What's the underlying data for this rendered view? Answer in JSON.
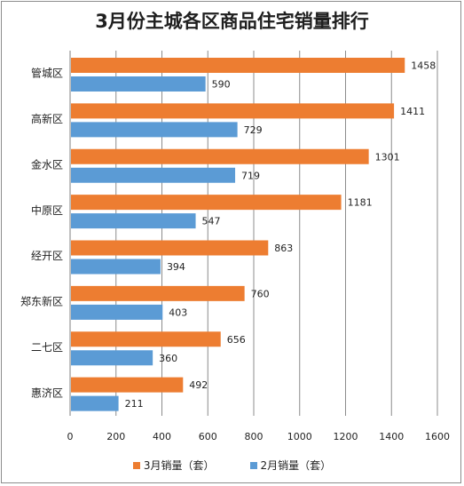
{
  "chart_data": {
    "type": "bar",
    "orientation": "horizontal",
    "title": "3月份主城各区商品住宅销量排行",
    "categories": [
      "管城区",
      "高新区",
      "金水区",
      "中原区",
      "经开区",
      "郑东新区",
      "二七区",
      "惠济区"
    ],
    "series": [
      {
        "name": "3月销量（套）",
        "color": "#ed7d31",
        "values": [
          1458,
          1411,
          1301,
          1181,
          863,
          760,
          656,
          492
        ]
      },
      {
        "name": "2月销量（套）",
        "color": "#5b9bd5",
        "values": [
          590,
          729,
          719,
          547,
          394,
          403,
          360,
          211
        ]
      }
    ],
    "xlim": [
      0,
      1600
    ],
    "xticks": [
      0,
      200,
      400,
      600,
      800,
      1000,
      1200,
      1400,
      1600
    ],
    "grid": true,
    "legend_position": "bottom"
  }
}
